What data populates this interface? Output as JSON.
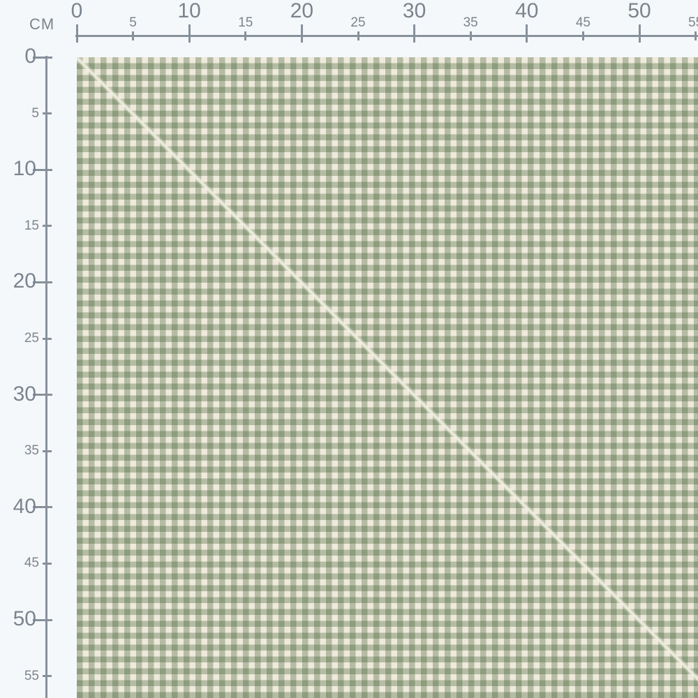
{
  "page": {
    "background_color": "#f5f8fa"
  },
  "ruler": {
    "unit_label": "CM",
    "text_color": "#7b848e",
    "line_color": "#87919c",
    "top_ticks": [
      0,
      5,
      10,
      15,
      20,
      25,
      30,
      35,
      40,
      45,
      50,
      55
    ],
    "left_ticks": [
      0,
      5,
      10,
      15,
      20,
      25,
      30,
      35,
      40,
      45,
      50,
      55
    ]
  },
  "fabric": {
    "description": "Sage green and cream gingham check fabric swatch with diagonal fold line",
    "check_size_cm": 0.5,
    "colors": {
      "cream": "#f0ebdc",
      "check_overlay": "rgba(42,77,29,0.30)",
      "light_green": "#b4bba2",
      "dark_green": "#8b9379",
      "fold_line": "#f7f4e7"
    }
  }
}
